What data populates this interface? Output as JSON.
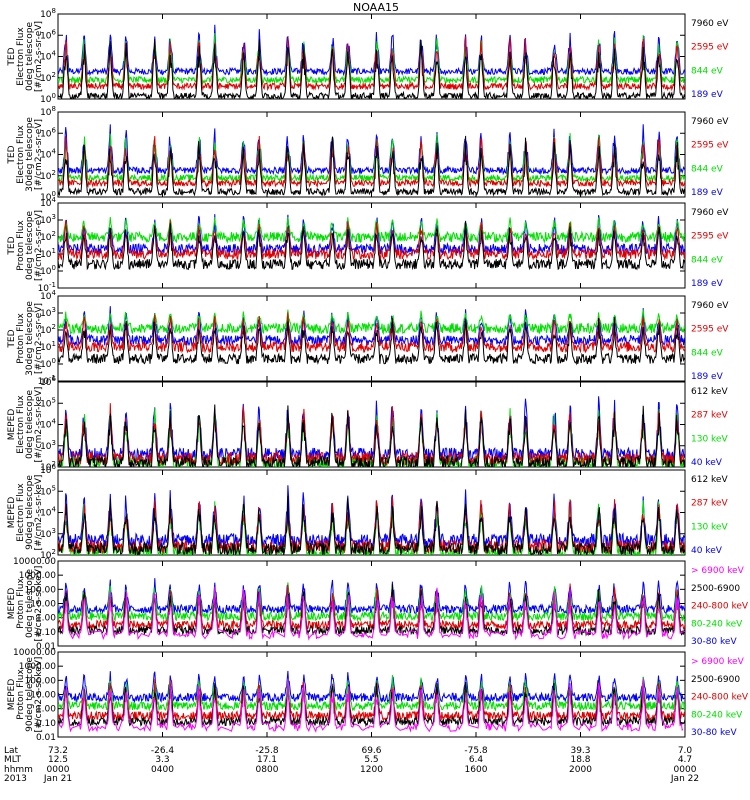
{
  "title": "NOAA15",
  "colors": {
    "black": "#000000",
    "red": "#e00000",
    "green": "#00e000",
    "blue": "#0000ff",
    "magenta": "#ff00ff"
  },
  "time_axis": {
    "hhmm_ticks": [
      "0000",
      "0400",
      "0800",
      "1200",
      "1600",
      "2000",
      "0000"
    ],
    "date_ticks": [
      "Jan 21",
      "",
      "",
      "",
      "",
      "",
      "Jan 22"
    ],
    "lat_ticks": [
      "73.2",
      "-26.4",
      "-25.8",
      "69.6",
      "-75.8",
      "39.3",
      "7.0"
    ],
    "mlt_ticks": [
      "12.5",
      "3.3",
      "17.1",
      "5.5",
      "6.4",
      "18.8",
      "4.7"
    ],
    "row_labels": [
      "Lat",
      "MLT",
      "hhmm",
      "2013"
    ],
    "x_range": [
      0,
      24
    ]
  },
  "panels": [
    {
      "id": "ted-electron-0deg",
      "ylabel": [
        "TED",
        "Electron Flux",
        "0deg telescope",
        "[#/cm2-s-sr-eV]"
      ],
      "yticks": [
        "10^0",
        "10^2",
        "10^4",
        "10^6",
        "10^8"
      ],
      "ylim_exp": [
        0,
        8
      ],
      "channels": [
        {
          "name": "7960 eV",
          "color": "black"
        },
        {
          "name": "2595 eV",
          "color": "red"
        },
        {
          "name": "844 eV",
          "color": "green"
        },
        {
          "name": "189 eV",
          "color": "blue"
        }
      ]
    },
    {
      "id": "ted-electron-30deg",
      "ylabel": [
        "TED",
        "Electron Flux",
        "30deg telescope",
        "[#/cm2-s-sr-eV]"
      ],
      "yticks": [
        "10^0",
        "10^2",
        "10^4",
        "10^6",
        "10^8"
      ],
      "ylim_exp": [
        0,
        8
      ],
      "channels": [
        {
          "name": "7960 eV",
          "color": "black"
        },
        {
          "name": "2595 eV",
          "color": "red"
        },
        {
          "name": "844 eV",
          "color": "green"
        },
        {
          "name": "189 eV",
          "color": "blue"
        }
      ]
    },
    {
      "id": "ted-proton-0deg",
      "ylabel": [
        "TED",
        "Proton Flux",
        "0deg telescope",
        "[#/cm2-s-sr-eV]"
      ],
      "yticks": [
        "10^-1",
        "10^0",
        "10^1",
        "10^2",
        "10^3",
        "10^4"
      ],
      "ylim_exp": [
        -1,
        4
      ],
      "channels": [
        {
          "name": "7960 eV",
          "color": "black"
        },
        {
          "name": "2595 eV",
          "color": "red"
        },
        {
          "name": "844 eV",
          "color": "green"
        },
        {
          "name": "189 eV",
          "color": "blue"
        }
      ]
    },
    {
      "id": "ted-proton-30deg",
      "ylabel": [
        "TED",
        "Proton Flux",
        "30deg telescope",
        "[#/cm2-s-sr-eV]"
      ],
      "yticks": [
        "10^-1",
        "10^0",
        "10^1",
        "10^2",
        "10^3",
        "10^4"
      ],
      "ylim_exp": [
        -1,
        4
      ],
      "channels": [
        {
          "name": "7960 eV",
          "color": "black"
        },
        {
          "name": "2595 eV",
          "color": "red"
        },
        {
          "name": "844 eV",
          "color": "green"
        },
        {
          "name": "189 eV",
          "color": "blue"
        }
      ]
    },
    {
      "id": "meped-electron-0deg",
      "ylabel": [
        "MEPED",
        "Electron Flux",
        "0deg telescope",
        "[#/cm2-s-sr-keV]"
      ],
      "yticks": [
        "10^2",
        "10^3",
        "10^4",
        "10^5",
        "10^6"
      ],
      "ylim_exp": [
        2,
        6
      ],
      "channels": [
        {
          "name": "612 keV",
          "color": "black"
        },
        {
          "name": "287 keV",
          "color": "red"
        },
        {
          "name": "130 keV",
          "color": "green"
        },
        {
          "name": "40 keV",
          "color": "blue"
        }
      ]
    },
    {
      "id": "meped-electron-90deg",
      "ylabel": [
        "MEPED",
        "Electron Flux",
        "90deg telescope",
        "[#/cm2-s-sr-keV]"
      ],
      "yticks": [
        "10^2",
        "10^3",
        "10^4",
        "10^5",
        "10^6"
      ],
      "ylim_exp": [
        2,
        6
      ],
      "channels": [
        {
          "name": "612 keV",
          "color": "black"
        },
        {
          "name": "287 keV",
          "color": "red"
        },
        {
          "name": "130 keV",
          "color": "green"
        },
        {
          "name": "40 keV",
          "color": "blue"
        }
      ]
    },
    {
      "id": "meped-proton-0deg",
      "ylabel": [
        "MEPED",
        "Proton Flux",
        "0deg telescope",
        "[#/cm2-s-sr-keV]"
      ],
      "yticks": [
        "0.01",
        "0.10",
        "1.00",
        "10.00",
        "100.00",
        "1000.00",
        "10000.00"
      ],
      "ylim_exp": [
        -2,
        4
      ],
      "channels": [
        {
          "name": "> 6900 keV",
          "color": "magenta"
        },
        {
          "name": "2500-6900",
          "color": "black"
        },
        {
          "name": "240-800 keV",
          "color": "red"
        },
        {
          "name": "80-240 keV",
          "color": "green"
        },
        {
          "name": "30-80 keV",
          "color": "blue"
        }
      ]
    },
    {
      "id": "meped-proton-90deg",
      "ylabel": [
        "MEPED",
        "Proton Flux",
        "90deg telescope",
        "[#/cm2-s-sr-keV]"
      ],
      "yticks": [
        "0.01",
        "0.10",
        "1.00",
        "10.00",
        "100.00",
        "1000.00",
        "10000.00"
      ],
      "ylim_exp": [
        -2,
        4
      ],
      "channels": [
        {
          "name": "> 6900 keV",
          "color": "magenta"
        },
        {
          "name": "2500-6900",
          "color": "black"
        },
        {
          "name": "240-800 keV",
          "color": "red"
        },
        {
          "name": "80-240 keV",
          "color": "green"
        },
        {
          "name": "30-80 keV",
          "color": "blue"
        }
      ]
    }
  ],
  "chart_data": {
    "type": "line",
    "title": "NOAA15",
    "x_range_hours": [
      0,
      24
    ],
    "y_scale": "log",
    "pass_times_hours": [
      0.3,
      1.0,
      2.0,
      2.6,
      3.7,
      4.3,
      5.4,
      6.0,
      7.1,
      7.7,
      8.8,
      9.4,
      10.5,
      11.1,
      12.2,
      12.8,
      13.9,
      14.5,
      15.6,
      16.2,
      17.3,
      17.9,
      19.0,
      19.6,
      20.7,
      21.3,
      22.4,
      23.0,
      23.7
    ],
    "series_levels_log10": [
      {
        "panel": "ted-electron-0deg",
        "baseline": {
          "7960 eV": 0.3,
          "2595 eV": 1.2,
          "844 eV": 1.8,
          "189 eV": 2.6
        },
        "peak": 7.0
      },
      {
        "panel": "ted-electron-30deg",
        "baseline": {
          "7960 eV": 0.5,
          "2595 eV": 1.3,
          "844 eV": 1.8,
          "189 eV": 2.5
        },
        "peak": 7.0
      },
      {
        "panel": "ted-proton-0deg",
        "baseline": {
          "7960 eV": 0.4,
          "2595 eV": 1.0,
          "844 eV": 2.0,
          "189 eV": 1.3
        },
        "peak": 3.5
      },
      {
        "panel": "ted-proton-30deg",
        "baseline": {
          "7960 eV": 0.3,
          "2595 eV": 1.0,
          "844 eV": 2.1,
          "189 eV": 1.4
        },
        "peak": 3.4
      },
      {
        "panel": "meped-electron-0deg",
        "baseline": {
          "612 keV": 2.2,
          "287 keV": 2.4,
          "130 keV": 2.2,
          "40 keV": 2.6
        },
        "peak": 5.6
      },
      {
        "panel": "meped-electron-90deg",
        "baseline": {
          "612 keV": 2.3,
          "287 keV": 2.4,
          "130 keV": 2.1,
          "40 keV": 2.7
        },
        "peak": 5.3
      },
      {
        "panel": "meped-proton-0deg",
        "baseline": {
          "> 6900 keV": -1.2,
          "2500-6900": -0.9,
          "240-800 keV": -0.5,
          "80-240 keV": 0.1,
          "30-80 keV": 0.6
        },
        "peak": 3.0
      },
      {
        "panel": "meped-proton-90deg",
        "baseline": {
          "> 6900 keV": -1.3,
          "2500-6900": -0.9,
          "240-800 keV": -0.5,
          "80-240 keV": 0.2,
          "30-80 keV": 0.8
        },
        "peak": 2.8
      }
    ]
  }
}
